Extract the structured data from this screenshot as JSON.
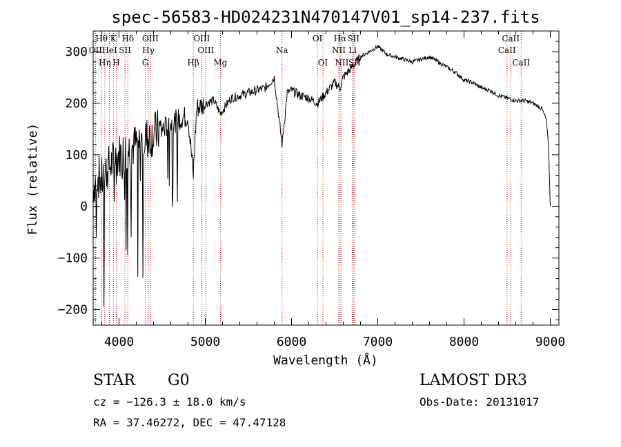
{
  "chart_data": {
    "type": "line",
    "title": "spec-56583-HD024231N470147V01_sp14-237.fits",
    "xlabel": "Wavelength (Å)",
    "ylabel": "Flux (relative)",
    "xlim": [
      3700,
      9100
    ],
    "ylim": [
      -230,
      340
    ],
    "x_ticks": [
      4000,
      5000,
      6000,
      7000,
      8000,
      9000
    ],
    "y_ticks": [
      -200,
      -100,
      0,
      100,
      200,
      300
    ],
    "x_tick_labels": [
      "4000",
      "5000",
      "6000",
      "7000",
      "8000",
      "9000"
    ],
    "y_tick_labels": [
      "−200",
      "−100",
      "0",
      "100",
      "200",
      "300"
    ],
    "series": [
      {
        "name": "spectrum",
        "color": "#000000",
        "x": [
          3700,
          3750,
          3800,
          3850,
          3900,
          3950,
          4000,
          4100,
          4200,
          4300,
          4400,
          4500,
          4600,
          4700,
          4800,
          4861,
          4900,
          5000,
          5100,
          5175,
          5300,
          5400,
          5500,
          5600,
          5700,
          5800,
          5890,
          5950,
          6000,
          6100,
          6200,
          6300,
          6400,
          6500,
          6563,
          6600,
          6700,
          6800,
          6900,
          7000,
          7100,
          7200,
          7300,
          7400,
          7500,
          7600,
          7700,
          7800,
          7900,
          8000,
          8100,
          8200,
          8300,
          8400,
          8500,
          8600,
          8700,
          8800,
          8900,
          8950,
          8980,
          9000
        ],
        "values": [
          40,
          60,
          50,
          70,
          80,
          90,
          100,
          110,
          120,
          130,
          140,
          150,
          160,
          170,
          175,
          60,
          190,
          200,
          205,
          180,
          210,
          215,
          220,
          225,
          230,
          250,
          120,
          220,
          225,
          215,
          210,
          200,
          220,
          240,
          230,
          250,
          270,
          290,
          300,
          310,
          295,
          290,
          285,
          280,
          285,
          290,
          280,
          270,
          260,
          245,
          240,
          230,
          225,
          215,
          210,
          205,
          205,
          200,
          190,
          170,
          120,
          0
        ]
      }
    ],
    "line_labels": [
      {
        "text": "Hθ",
        "x": 3798
      },
      {
        "text": "K",
        "x": 3934
      },
      {
        "text": "Hδ",
        "x": 4102
      },
      {
        "text": "OIII",
        "x": 4363
      },
      {
        "text": "OIII",
        "x": 4959
      },
      {
        "text": "OI",
        "x": 6300
      },
      {
        "text": "Hα",
        "x": 6563
      },
      {
        "text": "SII",
        "x": 6717
      },
      {
        "text": "CaII",
        "x": 8542
      },
      {
        "text": "HeI",
        "x": 3889
      },
      {
        "text": "SII",
        "x": 4069
      },
      {
        "text": "Hγ",
        "x": 4340
      },
      {
        "text": "OIII",
        "x": 5007
      },
      {
        "text": "Na",
        "x": 5890
      },
      {
        "text": "NII",
        "x": 6548
      },
      {
        "text": "Li",
        "x": 6708
      },
      {
        "text": "CaII",
        "x": 8498
      },
      {
        "text": "OII",
        "x": 3727
      },
      {
        "text": "Hη",
        "x": 3835
      },
      {
        "text": "H",
        "x": 3968
      },
      {
        "text": "G",
        "x": 4304
      },
      {
        "text": "Hβ",
        "x": 4861
      },
      {
        "text": "Mg",
        "x": 5175
      },
      {
        "text": "OI",
        "x": 6364
      },
      {
        "text": "NII",
        "x": 6583
      },
      {
        "text": "SII",
        "x": 6731
      },
      {
        "text": "CaII",
        "x": 8662
      }
    ]
  },
  "info": {
    "class_label": "STAR",
    "subclass": "G0",
    "survey": "LAMOST DR3",
    "cz": "cz = −126.3 ± 18.0 km/s",
    "obs_date": "Obs-Date: 20131017",
    "coords": "RA =  37.46272, DEC =  47.47128"
  },
  "colors": {
    "line_marker": "#cc0000",
    "spectrum": "#000000",
    "axis": "#000000"
  }
}
